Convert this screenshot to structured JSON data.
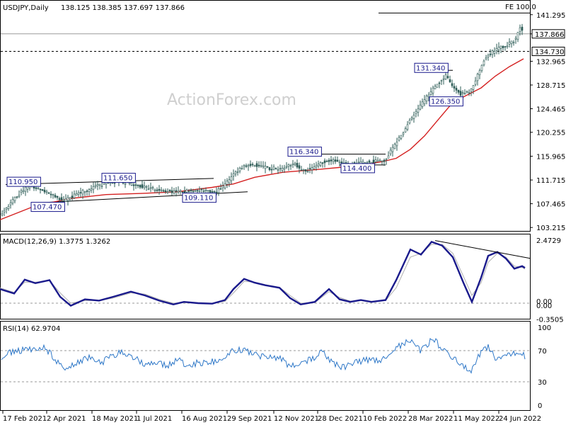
{
  "chart_data": [
    {
      "panel": "price",
      "type": "candlestick",
      "header": "USDJPY,Daily",
      "ohlc": "138.125 138.385 137.697 137.866",
      "watermark": "ActionForex.com",
      "fe_label": "FE 100.0",
      "y_ticks": [
        "141.295",
        "137.865",
        "132.965",
        "128.715",
        "124.465",
        "120.255",
        "115.965",
        "111.715",
        "107.465",
        "103.215"
      ],
      "ylim": [
        102.6,
        143.8
      ],
      "last_price": {
        "label": "137.866",
        "value": 137.866
      },
      "level": {
        "label": "134.730",
        "value": 134.73
      },
      "fe_level": 141.6,
      "annotations": [
        {
          "label": "110.950",
          "value": 110.95
        },
        {
          "label": "111.650",
          "value": 111.65
        },
        {
          "label": "107.470",
          "value": 107.47
        },
        {
          "label": "109.110",
          "value": 109.11
        },
        {
          "label": "116.340",
          "value": 116.34
        },
        {
          "label": "114.400",
          "value": 114.4
        },
        {
          "label": "131.340",
          "value": 131.34
        },
        {
          "label": "126.350",
          "value": 126.35
        }
      ],
      "path": [
        [
          0,
          105.2
        ],
        [
          20,
          108.5
        ],
        [
          40,
          110.6
        ],
        [
          55,
          110.3
        ],
        [
          70,
          109.4
        ],
        [
          90,
          108.0
        ],
        [
          110,
          109.3
        ],
        [
          140,
          110.8
        ],
        [
          165,
          111.4
        ],
        [
          185,
          111.0
        ],
        [
          205,
          110.4
        ],
        [
          230,
          109.7
        ],
        [
          255,
          109.6
        ],
        [
          270,
          109.8
        ],
        [
          290,
          109.9
        ],
        [
          305,
          109.6
        ],
        [
          315,
          110.4
        ],
        [
          330,
          112.6
        ],
        [
          345,
          114.3
        ],
        [
          360,
          114.4
        ],
        [
          380,
          113.8
        ],
        [
          400,
          113.7
        ],
        [
          415,
          114.8
        ],
        [
          425,
          113.4
        ],
        [
          440,
          113.6
        ],
        [
          455,
          114.9
        ],
        [
          470,
          115.2
        ],
        [
          490,
          114.4
        ],
        [
          505,
          114.7
        ],
        [
          520,
          114.9
        ],
        [
          530,
          115.1
        ],
        [
          545,
          115.3
        ],
        [
          555,
          117.5
        ],
        [
          565,
          119.3
        ],
        [
          580,
          122.5
        ],
        [
          600,
          126.0
        ],
        [
          615,
          128.5
        ],
        [
          630,
          130.4
        ],
        [
          640,
          128.2
        ],
        [
          652,
          127.0
        ],
        [
          665,
          127.7
        ],
        [
          675,
          130.5
        ],
        [
          685,
          133.5
        ],
        [
          700,
          135.0
        ],
        [
          715,
          135.8
        ],
        [
          728,
          136.8
        ],
        [
          735,
          139.2
        ],
        [
          740,
          137.9
        ]
      ],
      "ma": [
        [
          0,
          104.6
        ],
        [
          50,
          107.1
        ],
        [
          100,
          108.4
        ],
        [
          150,
          109.1
        ],
        [
          200,
          109.3
        ],
        [
          250,
          109.6
        ],
        [
          300,
          110.4
        ],
        [
          330,
          111.0
        ],
        [
          360,
          112.2
        ],
        [
          400,
          113.1
        ],
        [
          450,
          113.6
        ],
        [
          500,
          114.2
        ],
        [
          540,
          115.0
        ],
        [
          560,
          115.6
        ],
        [
          580,
          117.2
        ],
        [
          600,
          119.6
        ],
        [
          620,
          122.6
        ],
        [
          640,
          125.6
        ],
        [
          660,
          126.9
        ],
        [
          680,
          128.2
        ],
        [
          700,
          130.3
        ],
        [
          720,
          132.0
        ],
        [
          740,
          133.4
        ]
      ]
    },
    {
      "panel": "macd",
      "type": "line",
      "header": "MACD(12,26,9) 1.3775 1.3262",
      "y_ticks": [
        "2.4729",
        "0.00",
        "0.00",
        "-0.3505"
      ],
      "ylim": [
        -0.5,
        2.55
      ],
      "series": [
        {
          "name": "MACD",
          "color": "#1a1a8c",
          "points": [
            [
              0,
              0.55
            ],
            [
              20,
              0.38
            ],
            [
              35,
              0.92
            ],
            [
              50,
              0.78
            ],
            [
              70,
              0.9
            ],
            [
              85,
              0.25
            ],
            [
              100,
              -0.1
            ],
            [
              120,
              0.15
            ],
            [
              140,
              0.1
            ],
            [
              160,
              0.25
            ],
            [
              185,
              0.45
            ],
            [
              205,
              0.3
            ],
            [
              225,
              0.1
            ],
            [
              245,
              -0.05
            ],
            [
              260,
              0.05
            ],
            [
              280,
              0.0
            ],
            [
              300,
              -0.02
            ],
            [
              318,
              0.12
            ],
            [
              330,
              0.55
            ],
            [
              345,
              0.95
            ],
            [
              360,
              0.8
            ],
            [
              375,
              0.7
            ],
            [
              395,
              0.6
            ],
            [
              410,
              0.2
            ],
            [
              425,
              -0.05
            ],
            [
              445,
              0.05
            ],
            [
              465,
              0.55
            ],
            [
              480,
              0.15
            ],
            [
              495,
              0.05
            ],
            [
              510,
              0.12
            ],
            [
              525,
              0.05
            ],
            [
              545,
              0.12
            ],
            [
              560,
              0.9
            ],
            [
              570,
              1.5
            ],
            [
              580,
              2.1
            ],
            [
              595,
              1.9
            ],
            [
              610,
              2.4
            ],
            [
              625,
              2.25
            ],
            [
              640,
              1.8
            ],
            [
              655,
              0.8
            ],
            [
              667,
              0.05
            ],
            [
              680,
              1.0
            ],
            [
              690,
              1.85
            ],
            [
              703,
              2.0
            ],
            [
              715,
              1.75
            ],
            [
              727,
              1.35
            ],
            [
              738,
              1.45
            ],
            [
              742,
              1.38
            ]
          ]
        },
        {
          "name": "Signal",
          "color": "#b0b0b0",
          "points": [
            [
              0,
              0.6
            ],
            [
              20,
              0.42
            ],
            [
              35,
              0.82
            ],
            [
              50,
              0.82
            ],
            [
              70,
              0.88
            ],
            [
              85,
              0.4
            ],
            [
              100,
              0.0
            ],
            [
              120,
              0.1
            ],
            [
              140,
              0.1
            ],
            [
              160,
              0.2
            ],
            [
              185,
              0.4
            ],
            [
              205,
              0.35
            ],
            [
              225,
              0.15
            ],
            [
              245,
              0.0
            ],
            [
              260,
              0.02
            ],
            [
              280,
              0.01
            ],
            [
              300,
              0.0
            ],
            [
              318,
              0.07
            ],
            [
              330,
              0.4
            ],
            [
              345,
              0.85
            ],
            [
              360,
              0.82
            ],
            [
              375,
              0.72
            ],
            [
              395,
              0.62
            ],
            [
              410,
              0.3
            ],
            [
              425,
              0.0
            ],
            [
              445,
              0.02
            ],
            [
              465,
              0.45
            ],
            [
              480,
              0.22
            ],
            [
              495,
              0.08
            ],
            [
              510,
              0.1
            ],
            [
              525,
              0.07
            ],
            [
              545,
              0.1
            ],
            [
              560,
              0.6
            ],
            [
              570,
              1.2
            ],
            [
              580,
              1.8
            ],
            [
              595,
              1.95
            ],
            [
              610,
              2.3
            ],
            [
              625,
              2.3
            ],
            [
              640,
              1.95
            ],
            [
              655,
              1.05
            ],
            [
              667,
              0.3
            ],
            [
              680,
              0.8
            ],
            [
              690,
              1.6
            ],
            [
              703,
              1.95
            ],
            [
              715,
              1.8
            ],
            [
              727,
              1.45
            ],
            [
              738,
              1.4
            ],
            [
              742,
              1.33
            ]
          ]
        }
      ],
      "trendline": [
        [
          615,
          2.45
        ],
        [
          750,
          1.75
        ]
      ]
    },
    {
      "panel": "rsi",
      "type": "line",
      "header": "RSI(14) 62.9704",
      "y_ticks": [
        "100",
        "70",
        "30",
        "0"
      ],
      "ylim": [
        0,
        100
      ],
      "levels": [
        70,
        30
      ],
      "series": [
        {
          "name": "RSI",
          "color": "#2f78c8",
          "points": [
            [
              0,
              60
            ],
            [
              15,
              68
            ],
            [
              30,
              70
            ],
            [
              45,
              72
            ],
            [
              60,
              75
            ],
            [
              75,
              62
            ],
            [
              90,
              45
            ],
            [
              100,
              52
            ],
            [
              115,
              58
            ],
            [
              130,
              62
            ],
            [
              145,
              55
            ],
            [
              160,
              65
            ],
            [
              175,
              68
            ],
            [
              190,
              60
            ],
            [
              205,
              52
            ],
            [
              220,
              54
            ],
            [
              235,
              50
            ],
            [
              250,
              58
            ],
            [
              265,
              52
            ],
            [
              280,
              54
            ],
            [
              300,
              56
            ],
            [
              318,
              58
            ],
            [
              330,
              72
            ],
            [
              345,
              70
            ],
            [
              360,
              65
            ],
            [
              375,
              62
            ],
            [
              395,
              60
            ],
            [
              410,
              50
            ],
            [
              425,
              55
            ],
            [
              440,
              58
            ],
            [
              455,
              68
            ],
            [
              470,
              55
            ],
            [
              485,
              48
            ],
            [
              500,
              55
            ],
            [
              520,
              58
            ],
            [
              540,
              56
            ],
            [
              555,
              72
            ],
            [
              570,
              78
            ],
            [
              580,
              83
            ],
            [
              595,
              70
            ],
            [
              612,
              85
            ],
            [
              625,
              72
            ],
            [
              640,
              62
            ],
            [
              655,
              50
            ],
            [
              667,
              45
            ],
            [
              680,
              68
            ],
            [
              690,
              75
            ],
            [
              700,
              60
            ],
            [
              715,
              65
            ],
            [
              728,
              68
            ],
            [
              735,
              70
            ],
            [
              742,
              63
            ]
          ]
        }
      ]
    }
  ],
  "x_axis_labels": [
    "17 Feb 2021",
    "2 Apr 2021",
    "18 May 2021",
    "1 Jul 2021",
    "16 Aug 2021",
    "29 Sep 2021",
    "12 Nov 2021",
    "28 Dec 2021",
    "10 Feb 2022",
    "28 Mar 2022",
    "11 May 2022",
    "24 Jun 2022"
  ]
}
